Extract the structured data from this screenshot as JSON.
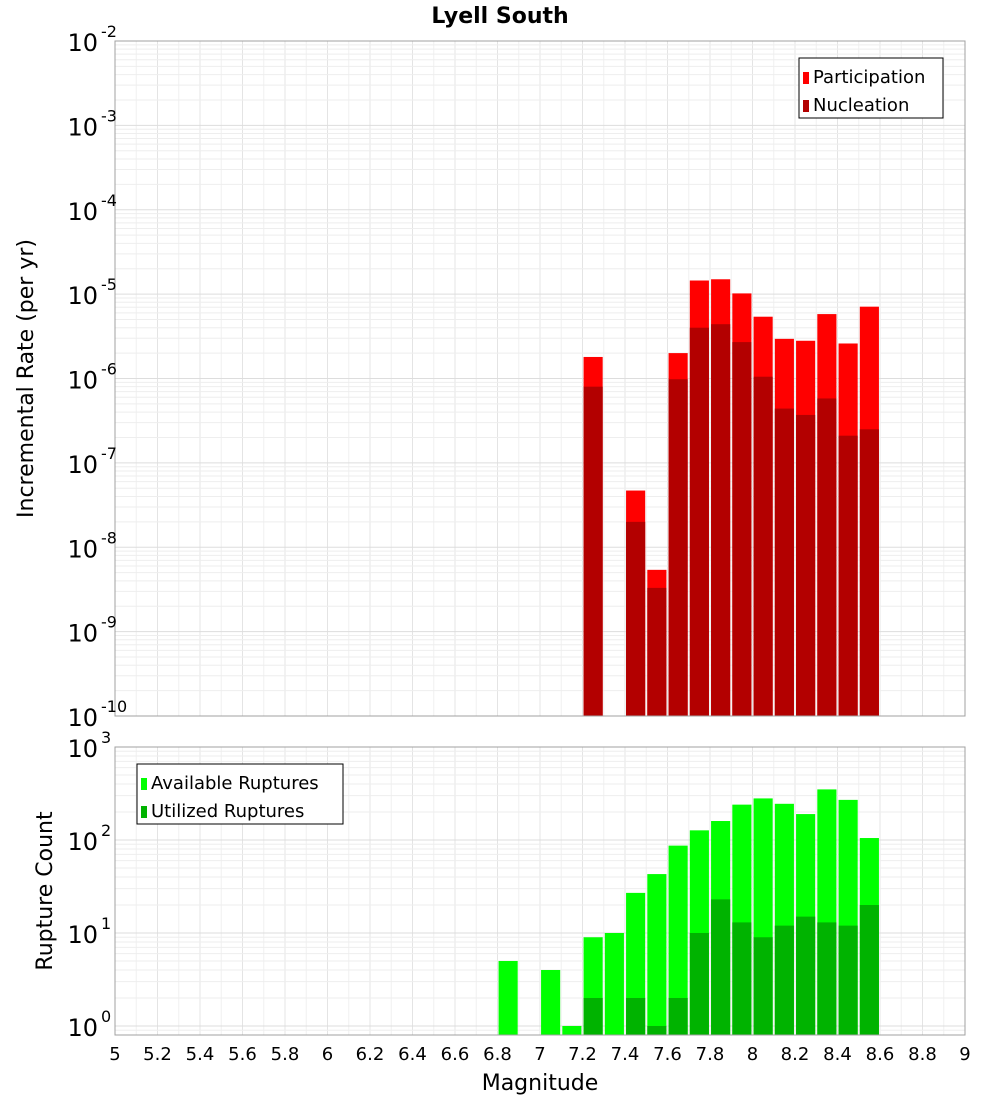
{
  "chart_data": [
    {
      "type": "bar",
      "title": "Lyell South",
      "xlabel": "Magnitude",
      "ylabel": "Incremental Rate (per yr)",
      "yscale": "log",
      "ylim": [
        1e-10,
        0.01
      ],
      "xlim": [
        5,
        9
      ],
      "bar_width": 0.09,
      "legend_position": "top-right",
      "x_ticks": [
        "5",
        "5.2",
        "5.4",
        "5.6",
        "5.8",
        "6",
        "6.2",
        "6.4",
        "6.6",
        "6.8",
        "7",
        "7.2",
        "7.4",
        "7.6",
        "7.8",
        "8",
        "8.2",
        "8.4",
        "8.6",
        "8.8",
        "9"
      ],
      "y_ticks": [
        {
          "base": "10",
          "exp": "-10"
        },
        {
          "base": "10",
          "exp": "-9"
        },
        {
          "base": "10",
          "exp": "-8"
        },
        {
          "base": "10",
          "exp": "-7"
        },
        {
          "base": "10",
          "exp": "-6"
        },
        {
          "base": "10",
          "exp": "-5"
        },
        {
          "base": "10",
          "exp": "-4"
        },
        {
          "base": "10",
          "exp": "-3"
        },
        {
          "base": "10",
          "exp": "-2"
        }
      ],
      "series": [
        {
          "name": "Participation",
          "color": "#ff0000",
          "x": [
            7.25,
            7.45,
            7.55,
            7.65,
            7.75,
            7.85,
            7.95,
            8.05,
            8.15,
            8.25,
            8.35,
            8.45,
            8.55
          ],
          "values": [
            1.8e-06,
            4.7e-08,
            5.4e-09,
            2e-06,
            1.45e-05,
            1.5e-05,
            1.02e-05,
            5.4e-06,
            2.95e-06,
            2.8e-06,
            5.8e-06,
            2.6e-06,
            7.1e-06
          ]
        },
        {
          "name": "Nucleation",
          "color": "#b30000",
          "x": [
            7.25,
            7.45,
            7.55,
            7.65,
            7.75,
            7.85,
            7.95,
            8.05,
            8.15,
            8.25,
            8.35,
            8.45,
            8.55
          ],
          "values": [
            8e-07,
            2e-08,
            3.3e-09,
            9.8e-07,
            4e-06,
            4.4e-06,
            2.7e-06,
            1.05e-06,
            4.4e-07,
            3.7e-07,
            5.8e-07,
            2.1e-07,
            2.5e-07
          ]
        }
      ]
    },
    {
      "type": "bar",
      "title": "",
      "xlabel": "Magnitude",
      "ylabel": "Rupture Count",
      "yscale": "log",
      "ylim": [
        0.8,
        1000
      ],
      "xlim": [
        5,
        9
      ],
      "bar_width": 0.09,
      "legend_position": "top-left",
      "x_ticks": [
        "5",
        "5.2",
        "5.4",
        "5.6",
        "5.8",
        "6",
        "6.2",
        "6.4",
        "6.6",
        "6.8",
        "7",
        "7.2",
        "7.4",
        "7.6",
        "7.8",
        "8",
        "8.2",
        "8.4",
        "8.6",
        "8.8",
        "9"
      ],
      "y_ticks": [
        {
          "base": "10",
          "exp": "0"
        },
        {
          "base": "10",
          "exp": "1"
        },
        {
          "base": "10",
          "exp": "2"
        },
        {
          "base": "10",
          "exp": "3"
        }
      ],
      "series": [
        {
          "name": "Available Ruptures",
          "color": "#00ff00",
          "x": [
            6.85,
            7.05,
            7.15,
            7.25,
            7.35,
            7.45,
            7.55,
            7.65,
            7.75,
            7.85,
            7.95,
            8.05,
            8.15,
            8.25,
            8.35,
            8.45,
            8.55
          ],
          "values": [
            5,
            4,
            1,
            9,
            10,
            27,
            43,
            87,
            127,
            160,
            240,
            280,
            245,
            190,
            350,
            270,
            105
          ]
        },
        {
          "name": "Utilized Ruptures",
          "color": "#00b300",
          "x": [
            7.25,
            7.45,
            7.55,
            7.65,
            7.75,
            7.85,
            7.95,
            8.05,
            8.15,
            8.25,
            8.35,
            8.45,
            8.55
          ],
          "values": [
            2,
            2,
            1,
            2,
            10,
            23,
            13,
            9,
            12,
            15,
            13,
            12,
            20
          ]
        }
      ]
    }
  ]
}
